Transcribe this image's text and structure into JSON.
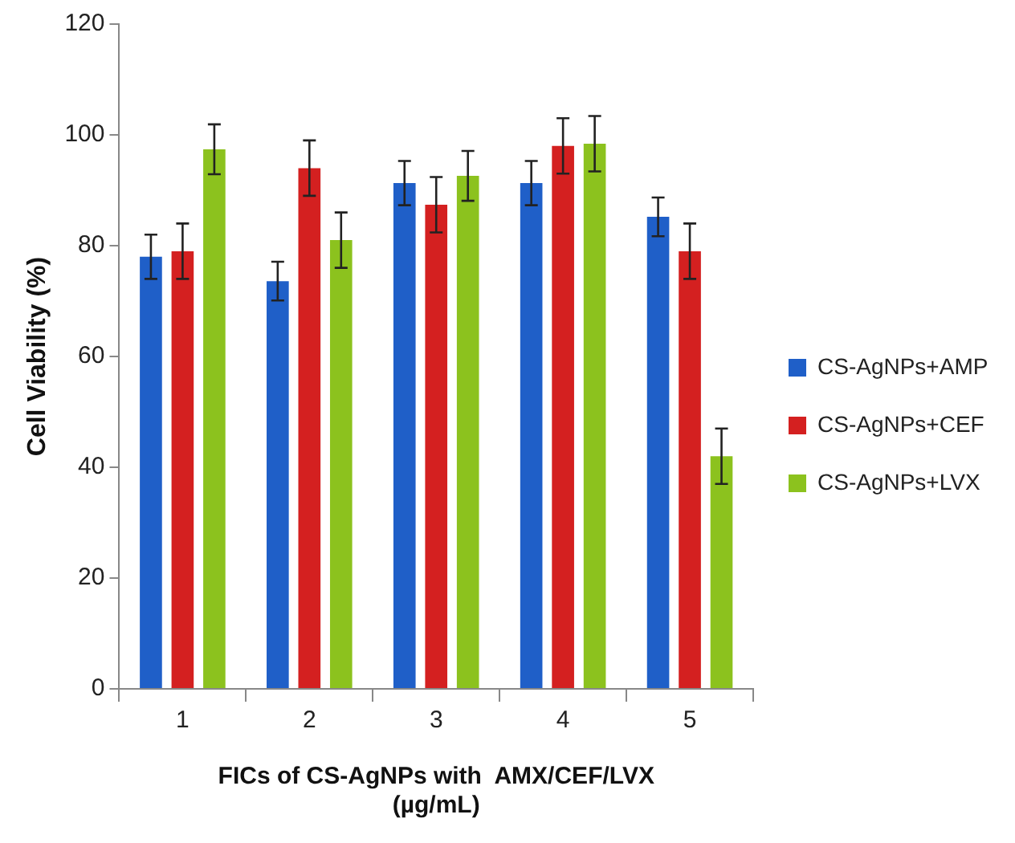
{
  "chart_data": {
    "type": "bar",
    "xlabel": "FICs of CS-AgNPs with  AMX/CEF/LVX (µg/mL)",
    "ylabel": "Cell Viability (%)",
    "categories": [
      "1",
      "2",
      "3",
      "4",
      "5"
    ],
    "series": [
      {
        "name": "CS-AgNPs+AMP",
        "color": "#1f5fc8",
        "values": [
          78,
          73.6,
          91.3,
          91.3,
          85.2
        ],
        "errors": [
          4,
          3.5,
          4,
          4,
          3.5
        ]
      },
      {
        "name": "CS-AgNPs+CEF",
        "color": "#d42020",
        "values": [
          79,
          94,
          87.4,
          98,
          79
        ],
        "errors": [
          5,
          5,
          5,
          5,
          5
        ]
      },
      {
        "name": "CS-AgNPs+LVX",
        "color": "#8cc21e",
        "values": [
          97.4,
          81,
          92.6,
          98.4,
          42
        ],
        "errors": [
          4.5,
          5,
          4.5,
          5,
          5
        ]
      }
    ],
    "ylim": [
      0,
      120
    ],
    "yticks": [
      0,
      20,
      40,
      60,
      80,
      100,
      120
    ],
    "grid": false,
    "legend": "right"
  }
}
